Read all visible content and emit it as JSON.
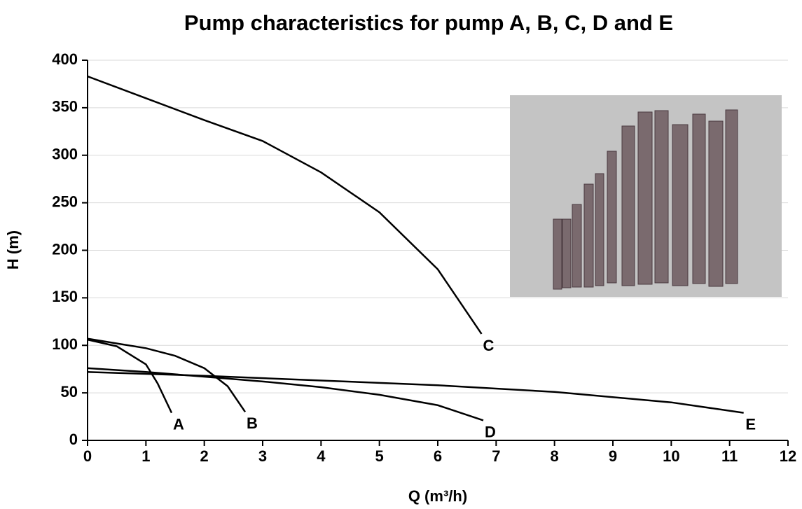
{
  "chart_data": {
    "type": "line",
    "title": "Pump characteristics for pump A, B, C, D and E",
    "x_label": "Q (m³/h)",
    "y_label": "H (m)",
    "xlim": [
      0,
      12
    ],
    "ylim": [
      0,
      400
    ],
    "xticks": [
      0,
      1,
      2,
      3,
      4,
      5,
      6,
      7,
      8,
      9,
      10,
      11,
      12
    ],
    "yticks": [
      0,
      50,
      100,
      150,
      200,
      250,
      300,
      350,
      400
    ],
    "grid": true,
    "series": [
      {
        "name": "A",
        "color": "#000000",
        "x": [
          0,
          0.5,
          1,
          1.2,
          1.44
        ],
        "values": [
          106,
          99,
          80,
          60,
          29
        ]
      },
      {
        "name": "B",
        "color": "#000000",
        "x": [
          0,
          1,
          1.5,
          2,
          2.4,
          2.7
        ],
        "values": [
          107,
          97,
          89,
          76,
          57,
          30
        ]
      },
      {
        "name": "C",
        "color": "#000000",
        "x": [
          0,
          1,
          2,
          3,
          4,
          5,
          6,
          6.75
        ],
        "values": [
          383,
          360,
          337,
          315,
          282,
          240,
          180,
          112
        ]
      },
      {
        "name": "D",
        "color": "#000000",
        "x": [
          0,
          1,
          2,
          3,
          4,
          5,
          6,
          6.78
        ],
        "values": [
          76,
          72,
          67,
          62,
          56,
          48,
          37,
          21
        ]
      },
      {
        "name": "E",
        "color": "#000000",
        "x": [
          0,
          2,
          4,
          6,
          8,
          10,
          11.24
        ],
        "values": [
          72,
          68,
          63,
          58,
          51,
          40,
          29
        ]
      }
    ]
  }
}
